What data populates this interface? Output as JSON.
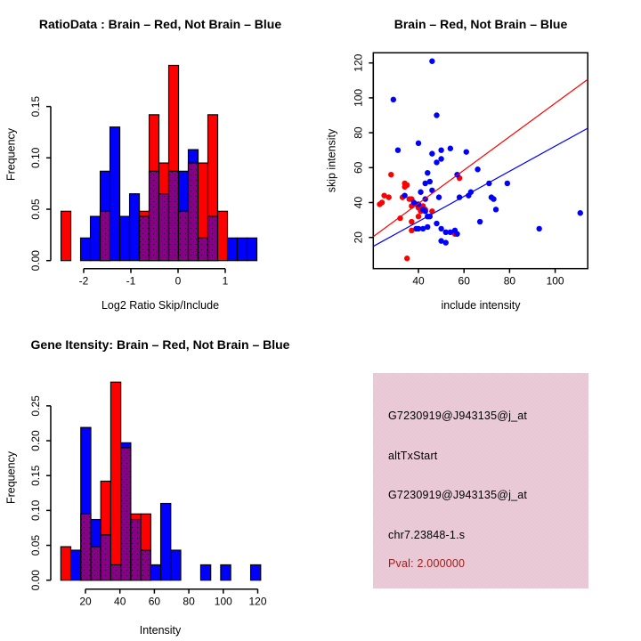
{
  "colors": {
    "red": "#ff0000",
    "blue": "#0000ff",
    "purple": "#870087",
    "purple_dot": "#2a0030",
    "pink_bg": "#f3c6d0",
    "pink_dot": "#ddcbda",
    "pval_red": "#9b1b1b",
    "axis": "#000000",
    "background": "#ffffff"
  },
  "chart_data": [
    {
      "type": "bar",
      "subtype": "overlaid-histogram",
      "title": "RatioData : Brain – Red, Not Brain – Blue",
      "xlabel": "Log2 Ratio Skip/Include",
      "ylabel": "Frequency",
      "legend_note": "red = Brain, blue = Not Brain, purple = overlap",
      "xlim": [
        -2.62,
        1.75
      ],
      "ylim": [
        0,
        0.195
      ],
      "grid": false,
      "xtick_vals": [
        -2,
        -1,
        0,
        1
      ],
      "xtick_labels": [
        "-2",
        "-1",
        "0",
        "1"
      ],
      "ytick_vals": [
        0,
        0.05,
        0.1,
        0.15
      ],
      "ytick_labels": [
        "0.00",
        "0.05",
        "0.10",
        "0.15"
      ],
      "bin_start": -2.48,
      "bin_width": 0.2075,
      "series": [
        {
          "name": "Brain",
          "color": "red",
          "values": [
            0.048,
            0,
            0,
            0,
            0.048,
            0,
            0,
            0,
            0.048,
            0.142,
            0.095,
            0.19,
            0.048,
            0.095,
            0.095,
            0.142,
            0.048,
            0,
            0,
            0
          ]
        },
        {
          "name": "Not Brain",
          "color": "blue",
          "values": [
            0,
            0,
            0.022,
            0.043,
            0.087,
            0.13,
            0.043,
            0.065,
            0.043,
            0.087,
            0.065,
            0.087,
            0.087,
            0.108,
            0.022,
            0.043,
            0,
            0.022,
            0.022,
            0.022
          ]
        }
      ]
    },
    {
      "type": "scatter",
      "title": "Brain – Red, Not Brain – Blue",
      "xlabel": "include intensity",
      "ylabel": "skip intensity",
      "xlim": [
        20.2,
        114.3
      ],
      "ylim": [
        2,
        126
      ],
      "grid": false,
      "box": true,
      "xtick_vals": [
        40,
        60,
        80,
        100
      ],
      "xtick_labels": [
        "40",
        "60",
        "80",
        "100"
      ],
      "ytick_vals": [
        20,
        40,
        60,
        80,
        100,
        120
      ],
      "ytick_labels": [
        "20",
        "40",
        "60",
        "80",
        "100",
        "120"
      ],
      "point_radius": 3.2,
      "series": [
        {
          "name": "Brain",
          "color": "red",
          "points": [
            [
              28,
              56
            ],
            [
              58,
              54
            ],
            [
              34,
              51
            ],
            [
              35,
              50
            ],
            [
              34,
              49
            ],
            [
              33,
              43
            ],
            [
              27,
              43
            ],
            [
              25,
              44
            ],
            [
              24,
              40
            ],
            [
              23,
              39
            ],
            [
              36,
              42
            ],
            [
              37,
              42
            ],
            [
              37,
              38
            ],
            [
              39,
              39
            ],
            [
              40,
              37
            ],
            [
              41,
              35
            ],
            [
              43,
              36
            ],
            [
              42,
              38
            ],
            [
              46,
              35
            ],
            [
              40,
              32
            ],
            [
              32,
              31
            ],
            [
              37,
              29
            ],
            [
              37,
              24
            ],
            [
              56,
              22
            ],
            [
              35,
              8
            ]
          ]
        },
        {
          "name": "Not Brain",
          "color": "blue",
          "points": [
            [
              46,
              121
            ],
            [
              29,
              99
            ],
            [
              48,
              90
            ],
            [
              40,
              74
            ],
            [
              31,
              70
            ],
            [
              46,
              68
            ],
            [
              50,
              70
            ],
            [
              54,
              71
            ],
            [
              61,
              69
            ],
            [
              50,
              65
            ],
            [
              48,
              63
            ],
            [
              66,
              59
            ],
            [
              44,
              57
            ],
            [
              57,
              56
            ],
            [
              43,
              51
            ],
            [
              45,
              52
            ],
            [
              71,
              51
            ],
            [
              79,
              51
            ],
            [
              41,
              46
            ],
            [
              46,
              47
            ],
            [
              34,
              44
            ],
            [
              49,
              43
            ],
            [
              58,
              43
            ],
            [
              62,
              44
            ],
            [
              63,
              46
            ],
            [
              72,
              43
            ],
            [
              73,
              42
            ],
            [
              38,
              40
            ],
            [
              40,
              39
            ],
            [
              43,
              42
            ],
            [
              42,
              36
            ],
            [
              43,
              35
            ],
            [
              74,
              36
            ],
            [
              44,
              32
            ],
            [
              45,
              32
            ],
            [
              111,
              34
            ],
            [
              48,
              28
            ],
            [
              67,
              29
            ],
            [
              44,
              26
            ],
            [
              39,
              25
            ],
            [
              40,
              25
            ],
            [
              42,
              25
            ],
            [
              56,
              24
            ],
            [
              93,
              25
            ],
            [
              50,
              25
            ],
            [
              52,
              23
            ],
            [
              54,
              23
            ],
            [
              57,
              22
            ],
            [
              50,
              18
            ],
            [
              52,
              17
            ]
          ]
        }
      ],
      "lines": [
        {
          "name": "brain-fit-line",
          "color": "red",
          "x1": 20.2,
          "y1": 20.5,
          "x2": 114.3,
          "y2": 110.6
        },
        {
          "name": "notbrain-fit-line",
          "color": "blue",
          "x1": 20.2,
          "y1": 14.9,
          "x2": 114.3,
          "y2": 82.6
        }
      ]
    },
    {
      "type": "bar",
      "subtype": "overlaid-histogram",
      "title": "Gene Itensity: Brain – Red, Not Brain – Blue",
      "xlabel": "Intensity",
      "ylabel": "Frequency",
      "legend_note": "red = Brain, blue = Not Brain, purple = overlap",
      "xlim": [
        2,
        126
      ],
      "ylim": [
        0,
        0.29
      ],
      "grid": false,
      "xtick_vals": [
        20,
        40,
        60,
        80,
        100,
        120
      ],
      "xtick_labels": [
        "20",
        "40",
        "60",
        "80",
        "100",
        "120"
      ],
      "ytick_vals": [
        0,
        0.05,
        0.1,
        0.15,
        0.2,
        0.25
      ],
      "ytick_labels": [
        "0.00",
        "0.05",
        "0.10",
        "0.15",
        "0.20",
        "0.25"
      ],
      "bin_start": 5.7,
      "bin_width": 5.8,
      "series": [
        {
          "name": "Brain",
          "color": "red",
          "values": [
            0.048,
            0,
            0.095,
            0.048,
            0.142,
            0.284,
            0.19,
            0.095,
            0.095,
            0,
            0,
            0,
            0,
            0,
            0,
            0,
            0,
            0,
            0,
            0
          ]
        },
        {
          "name": "Not Brain",
          "color": "blue",
          "values": [
            0,
            0.043,
            0.219,
            0.087,
            0.065,
            0.022,
            0.197,
            0.087,
            0.043,
            0.022,
            0.11,
            0.043,
            0,
            0,
            0.022,
            0,
            0.022,
            0,
            0,
            0.022
          ]
        }
      ]
    },
    {
      "type": "infobox",
      "lines": [
        "G7230919@J943135@j_at",
        "altTxStart",
        "G7230919@J943135@j_at",
        "chr7.23848-1.s",
        "Pval: 2.000000"
      ]
    }
  ]
}
